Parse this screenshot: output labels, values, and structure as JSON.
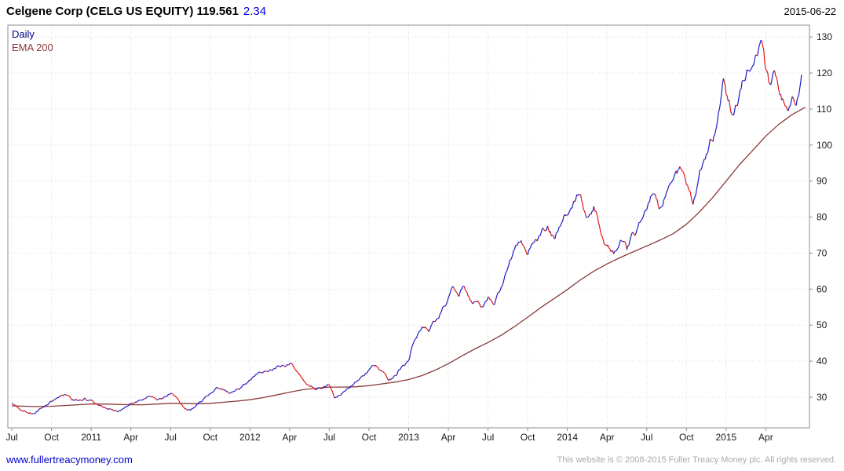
{
  "header": {
    "title": "Celgene Corp (CELG US EQUITY) 119.561",
    "change": "2.34",
    "date": "2015-06-22"
  },
  "legend": {
    "series1": "Daily",
    "series2": "EMA 200"
  },
  "footer": {
    "link": "www.fullertreacymoney.com",
    "copyright": "This website is © 2008-2015 Fuller Treacy Money plc. All rights reserved."
  },
  "colors": {
    "up": "#1c1cc8",
    "down": "#e01818",
    "ema": "#8b3a3a",
    "grid": "#dedede",
    "border": "#8c8c8c",
    "tick_text": "#1a1a1a",
    "change": "#0000e0",
    "link": "#0000cc",
    "copyright": "#aaaaaa",
    "legend_daily": "#00008b"
  },
  "chart_data": {
    "type": "line",
    "title": "Celgene Corp (CELG US EQUITY)",
    "last_price": 119.561,
    "change": 2.34,
    "as_of": "2015-06-22",
    "x_unit": "months since 2010-07-01",
    "xlim": [
      -0.3,
      60.3
    ],
    "ylim": [
      21.5,
      133.3
    ],
    "grid": true,
    "legend_position": "top-left",
    "y_ticks": [
      30,
      40,
      50,
      60,
      70,
      80,
      90,
      100,
      110,
      120,
      130
    ],
    "x_ticks": [
      {
        "x": 0,
        "label": "Jul"
      },
      {
        "x": 3,
        "label": "Oct"
      },
      {
        "x": 6,
        "label": "2011"
      },
      {
        "x": 9,
        "label": "Apr"
      },
      {
        "x": 12,
        "label": "Jul"
      },
      {
        "x": 15,
        "label": "Oct"
      },
      {
        "x": 18,
        "label": "2012"
      },
      {
        "x": 21,
        "label": "Apr"
      },
      {
        "x": 24,
        "label": "Jul"
      },
      {
        "x": 27,
        "label": "Oct"
      },
      {
        "x": 30,
        "label": "2013"
      },
      {
        "x": 33,
        "label": "Apr"
      },
      {
        "x": 36,
        "label": "Jul"
      },
      {
        "x": 39,
        "label": "Oct"
      },
      {
        "x": 42,
        "label": "2014"
      },
      {
        "x": 45,
        "label": "Apr"
      },
      {
        "x": 48,
        "label": "Jul"
      },
      {
        "x": 51,
        "label": "Oct"
      },
      {
        "x": 54,
        "label": "2015"
      },
      {
        "x": 57,
        "label": "Apr"
      }
    ],
    "series": [
      {
        "name": "Daily",
        "style": "direction-colored",
        "points": [
          [
            0.0,
            28.2
          ],
          [
            0.5,
            27.0
          ],
          [
            1.0,
            26.2
          ],
          [
            1.5,
            25.4
          ],
          [
            2.0,
            26.3
          ],
          [
            2.5,
            27.6
          ],
          [
            3.0,
            28.8
          ],
          [
            3.5,
            29.8
          ],
          [
            4.0,
            30.8
          ],
          [
            4.5,
            29.4
          ],
          [
            5.0,
            29.0
          ],
          [
            5.5,
            29.8
          ],
          [
            6.0,
            29.3
          ],
          [
            6.5,
            27.8
          ],
          [
            7.0,
            27.2
          ],
          [
            7.5,
            26.6
          ],
          [
            8.0,
            25.9
          ],
          [
            8.5,
            27.0
          ],
          [
            9.0,
            28.2
          ],
          [
            9.5,
            28.8
          ],
          [
            10.0,
            29.6
          ],
          [
            10.5,
            30.1
          ],
          [
            11.0,
            29.2
          ],
          [
            11.5,
            30.0
          ],
          [
            12.0,
            31.0
          ],
          [
            12.5,
            29.8
          ],
          [
            13.0,
            27.2
          ],
          [
            13.5,
            26.3
          ],
          [
            14.0,
            28.0
          ],
          [
            14.5,
            29.6
          ],
          [
            15.0,
            31.0
          ],
          [
            15.5,
            32.8
          ],
          [
            16.0,
            32.0
          ],
          [
            16.5,
            31.2
          ],
          [
            17.0,
            32.2
          ],
          [
            17.5,
            33.6
          ],
          [
            18.0,
            34.8
          ],
          [
            18.5,
            36.3
          ],
          [
            19.0,
            36.9
          ],
          [
            19.5,
            37.6
          ],
          [
            20.0,
            38.4
          ],
          [
            20.5,
            38.9
          ],
          [
            21.0,
            39.3
          ],
          [
            21.5,
            37.4
          ],
          [
            22.0,
            35.0
          ],
          [
            22.5,
            33.0
          ],
          [
            23.0,
            32.0
          ],
          [
            23.5,
            32.4
          ],
          [
            24.0,
            33.4
          ],
          [
            24.4,
            29.8
          ],
          [
            25.0,
            31.2
          ],
          [
            25.5,
            32.6
          ],
          [
            26.0,
            34.2
          ],
          [
            26.5,
            36.0
          ],
          [
            27.0,
            37.6
          ],
          [
            27.5,
            38.9
          ],
          [
            28.0,
            37.2
          ],
          [
            28.5,
            34.6
          ],
          [
            29.0,
            36.0
          ],
          [
            29.5,
            38.6
          ],
          [
            30.0,
            40.2
          ],
          [
            30.3,
            44.5
          ],
          [
            30.6,
            46.5
          ],
          [
            31.0,
            49.5
          ],
          [
            31.5,
            48.2
          ],
          [
            32.0,
            51.0
          ],
          [
            32.5,
            54.0
          ],
          [
            33.0,
            57.5
          ],
          [
            33.4,
            60.5
          ],
          [
            33.8,
            58.0
          ],
          [
            34.2,
            60.8
          ],
          [
            34.6,
            57.5
          ],
          [
            35.0,
            56.5
          ],
          [
            35.5,
            55.0
          ],
          [
            36.0,
            57.8
          ],
          [
            36.4,
            55.8
          ],
          [
            37.0,
            60.5
          ],
          [
            37.5,
            66.0
          ],
          [
            38.0,
            71.0
          ],
          [
            38.5,
            73.5
          ],
          [
            39.0,
            69.5
          ],
          [
            39.5,
            73.0
          ],
          [
            40.0,
            75.5
          ],
          [
            40.5,
            77.5
          ],
          [
            41.0,
            74.0
          ],
          [
            41.5,
            77.8
          ],
          [
            42.0,
            80.5
          ],
          [
            42.5,
            84.5
          ],
          [
            43.0,
            86.2
          ],
          [
            43.5,
            80.0
          ],
          [
            44.0,
            83.0
          ],
          [
            44.5,
            76.0
          ],
          [
            45.0,
            72.0
          ],
          [
            45.5,
            69.8
          ],
          [
            46.0,
            73.5
          ],
          [
            46.5,
            71.0
          ],
          [
            47.0,
            75.5
          ],
          [
            47.5,
            78.5
          ],
          [
            48.0,
            82.0
          ],
          [
            48.5,
            86.5
          ],
          [
            49.0,
            82.5
          ],
          [
            49.5,
            87.0
          ],
          [
            50.0,
            90.5
          ],
          [
            50.5,
            94.0
          ],
          [
            51.0,
            89.0
          ],
          [
            51.5,
            83.5
          ],
          [
            52.0,
            93.0
          ],
          [
            52.5,
            97.5
          ],
          [
            53.0,
            101.0
          ],
          [
            53.5,
            110.0
          ],
          [
            53.8,
            118.5
          ],
          [
            54.0,
            114.0
          ],
          [
            54.5,
            108.5
          ],
          [
            55.0,
            114.0
          ],
          [
            55.5,
            119.0
          ],
          [
            56.0,
            122.0
          ],
          [
            56.3,
            125.0
          ],
          [
            56.7,
            128.8
          ],
          [
            57.0,
            121.0
          ],
          [
            57.3,
            117.0
          ],
          [
            57.6,
            120.5
          ],
          [
            58.0,
            115.0
          ],
          [
            58.4,
            111.5
          ],
          [
            58.7,
            109.5
          ],
          [
            59.0,
            113.5
          ],
          [
            59.3,
            111.0
          ],
          [
            59.5,
            114.0
          ],
          [
            59.7,
            119.561
          ]
        ]
      },
      {
        "name": "EMA 200",
        "style": "smooth",
        "x_start": 0,
        "x_step": 1,
        "values": [
          27.6,
          27.5,
          27.4,
          27.5,
          27.7,
          27.9,
          28.1,
          28.1,
          28.0,
          27.9,
          27.9,
          28.1,
          28.3,
          28.3,
          28.2,
          28.3,
          28.6,
          28.9,
          29.3,
          29.9,
          30.6,
          31.4,
          32.1,
          32.5,
          32.8,
          32.8,
          32.9,
          33.2,
          33.7,
          34.2,
          34.9,
          36.0,
          37.5,
          39.3,
          41.4,
          43.4,
          45.2,
          47.2,
          49.6,
          52.2,
          54.9,
          57.4,
          59.9,
          62.6,
          65.0,
          67.0,
          68.8,
          70.4,
          72.0,
          73.6,
          75.4,
          78.0,
          81.5,
          85.5,
          90.0,
          94.5,
          98.5,
          102.5,
          105.8,
          108.5,
          110.5
        ]
      }
    ]
  }
}
